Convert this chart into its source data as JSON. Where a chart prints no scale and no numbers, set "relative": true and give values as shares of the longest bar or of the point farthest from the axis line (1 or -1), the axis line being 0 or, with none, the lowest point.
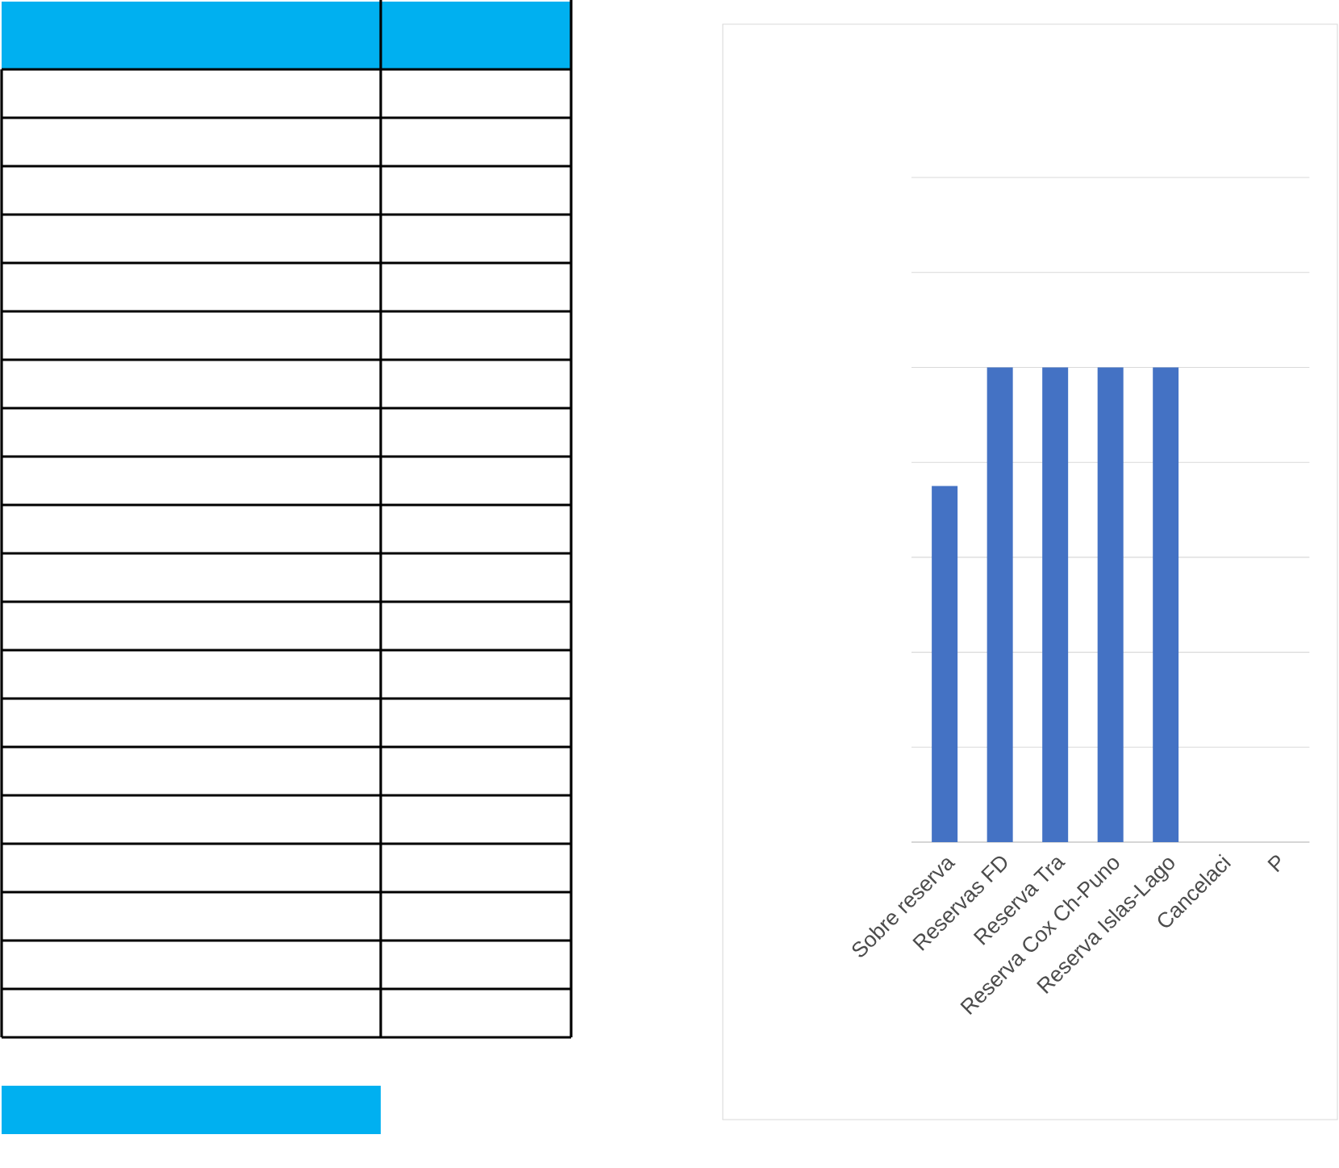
{
  "chart_data": {
    "type": "bar",
    "relative": true,
    "grid": "y",
    "tick_labels": "x",
    "color": "#4472c4",
    "categories": [
      "Sobre reserva",
      "Reservas FD",
      "Reserva Tra",
      "Reserva Cox Ch-Puno",
      "Reserva Islas-Lago",
      "Cancelaci",
      "P"
    ],
    "values": [
      0.75,
      1,
      1,
      1,
      1,
      null,
      null
    ]
  }
}
